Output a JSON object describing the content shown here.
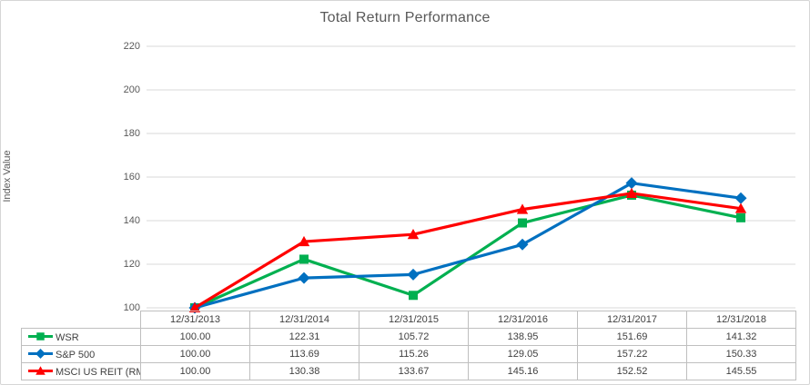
{
  "chart_data": {
    "type": "line",
    "title": "Total Return Performance",
    "xlabel": "",
    "ylabel": "Index Value",
    "categories": [
      "12/31/2013",
      "12/31/2014",
      "12/31/2015",
      "12/31/2016",
      "12/31/2017",
      "12/31/2018"
    ],
    "series": [
      {
        "name": "WSR",
        "color": "#00B050",
        "marker": "square",
        "values": [
          100.0,
          122.31,
          105.72,
          138.95,
          151.69,
          141.32
        ]
      },
      {
        "name": "S&P 500",
        "color": "#0070C0",
        "marker": "diamond",
        "values": [
          100.0,
          113.69,
          115.26,
          129.05,
          157.22,
          150.33
        ]
      },
      {
        "name": "MSCI US REIT (RMS)",
        "color": "#FF0000",
        "marker": "triangle",
        "values": [
          100.0,
          130.38,
          133.67,
          145.16,
          152.52,
          145.55
        ]
      }
    ],
    "ylim": [
      100,
      220
    ],
    "yticks": [
      100,
      120,
      140,
      160,
      180,
      200,
      220
    ],
    "value_format_decimals": 2,
    "grid": true,
    "gridline_color": "#d9d9d9",
    "legend_position": "table-left",
    "title_color": "#595959",
    "axis_text_color": "#595959",
    "table_text_color": "#404040",
    "table_border_color": "#bfbfbf"
  }
}
